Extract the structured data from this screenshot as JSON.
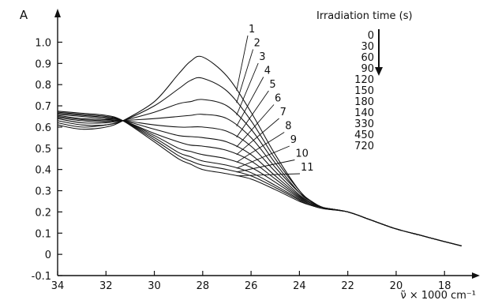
{
  "chart_data": {
    "type": "line",
    "ylabel": "A",
    "xlabel": "ν̃ × 1000 cm⁻¹",
    "xlim": [
      34,
      16.8
    ],
    "ylim": [
      -0.1,
      1.05
    ],
    "x_reversed": true,
    "grid": false,
    "x_ticks": [
      34,
      32,
      30,
      28,
      26,
      24,
      22,
      20,
      18
    ],
    "y_ticks": [
      "-0.1",
      "0",
      "0.1",
      "0.2",
      "0.3",
      "0.4",
      "0.5",
      "0.6",
      "0.7",
      "0.8",
      "0.9",
      "1.0"
    ],
    "legend": {
      "title": "Irradiation time (s)",
      "placement": "top-right",
      "values": [
        "0",
        "30",
        "60",
        "90",
        "120",
        "150",
        "180",
        "140",
        "330",
        "450",
        "720"
      ]
    },
    "x": [
      34,
      33,
      32,
      31.3,
      30,
      29,
      28.5,
      28,
      27,
      26,
      25,
      24,
      23.5,
      23,
      22,
      21,
      20,
      19,
      18,
      17.3
    ],
    "series": [
      {
        "name": "1",
        "values": [
          0.61,
          0.59,
          0.6,
          0.63,
          0.72,
          0.85,
          0.91,
          0.93,
          0.84,
          0.67,
          0.47,
          0.3,
          0.25,
          0.22,
          0.2,
          0.16,
          0.12,
          0.09,
          0.06,
          0.04
        ]
      },
      {
        "name": "2",
        "values": [
          0.62,
          0.6,
          0.61,
          0.63,
          0.7,
          0.78,
          0.82,
          0.83,
          0.77,
          0.63,
          0.45,
          0.3,
          0.25,
          0.22,
          0.2,
          0.16,
          0.12,
          0.09,
          0.06,
          0.04
        ]
      },
      {
        "name": "3",
        "values": [
          0.63,
          0.61,
          0.61,
          0.63,
          0.67,
          0.71,
          0.72,
          0.73,
          0.7,
          0.59,
          0.43,
          0.29,
          0.25,
          0.22,
          0.2,
          0.16,
          0.12,
          0.09,
          0.06,
          0.04
        ]
      },
      {
        "name": "4",
        "values": [
          0.64,
          0.62,
          0.62,
          0.63,
          0.64,
          0.65,
          0.655,
          0.66,
          0.64,
          0.55,
          0.41,
          0.29,
          0.25,
          0.22,
          0.2,
          0.16,
          0.12,
          0.09,
          0.06,
          0.04
        ]
      },
      {
        "name": "5",
        "values": [
          0.645,
          0.63,
          0.625,
          0.63,
          0.61,
          0.6,
          0.6,
          0.6,
          0.58,
          0.51,
          0.39,
          0.28,
          0.245,
          0.22,
          0.2,
          0.16,
          0.12,
          0.09,
          0.06,
          0.04
        ]
      },
      {
        "name": "6",
        "values": [
          0.65,
          0.635,
          0.63,
          0.63,
          0.59,
          0.56,
          0.555,
          0.55,
          0.53,
          0.47,
          0.37,
          0.275,
          0.24,
          0.22,
          0.2,
          0.16,
          0.12,
          0.09,
          0.06,
          0.04
        ]
      },
      {
        "name": "7",
        "values": [
          0.655,
          0.64,
          0.635,
          0.63,
          0.57,
          0.53,
          0.515,
          0.51,
          0.49,
          0.44,
          0.355,
          0.27,
          0.24,
          0.22,
          0.2,
          0.16,
          0.12,
          0.09,
          0.06,
          0.04
        ]
      },
      {
        "name": "8",
        "values": [
          0.66,
          0.65,
          0.64,
          0.63,
          0.56,
          0.5,
          0.485,
          0.47,
          0.45,
          0.41,
          0.34,
          0.265,
          0.235,
          0.22,
          0.2,
          0.16,
          0.12,
          0.09,
          0.06,
          0.04
        ]
      },
      {
        "name": "9",
        "values": [
          0.665,
          0.655,
          0.645,
          0.63,
          0.55,
          0.48,
          0.46,
          0.44,
          0.42,
          0.385,
          0.325,
          0.26,
          0.235,
          0.22,
          0.2,
          0.16,
          0.12,
          0.09,
          0.06,
          0.04
        ]
      },
      {
        "name": "10",
        "values": [
          0.67,
          0.66,
          0.65,
          0.63,
          0.54,
          0.465,
          0.44,
          0.42,
          0.4,
          0.37,
          0.315,
          0.255,
          0.23,
          0.215,
          0.2,
          0.16,
          0.12,
          0.09,
          0.06,
          0.04
        ]
      },
      {
        "name": "11",
        "values": [
          0.675,
          0.665,
          0.655,
          0.63,
          0.53,
          0.45,
          0.425,
          0.4,
          0.38,
          0.355,
          0.305,
          0.25,
          0.23,
          0.215,
          0.2,
          0.16,
          0.12,
          0.09,
          0.06,
          0.04
        ]
      }
    ],
    "annotations": {
      "arrow": "down",
      "arrow_icon": "down-arrow-icon"
    }
  }
}
